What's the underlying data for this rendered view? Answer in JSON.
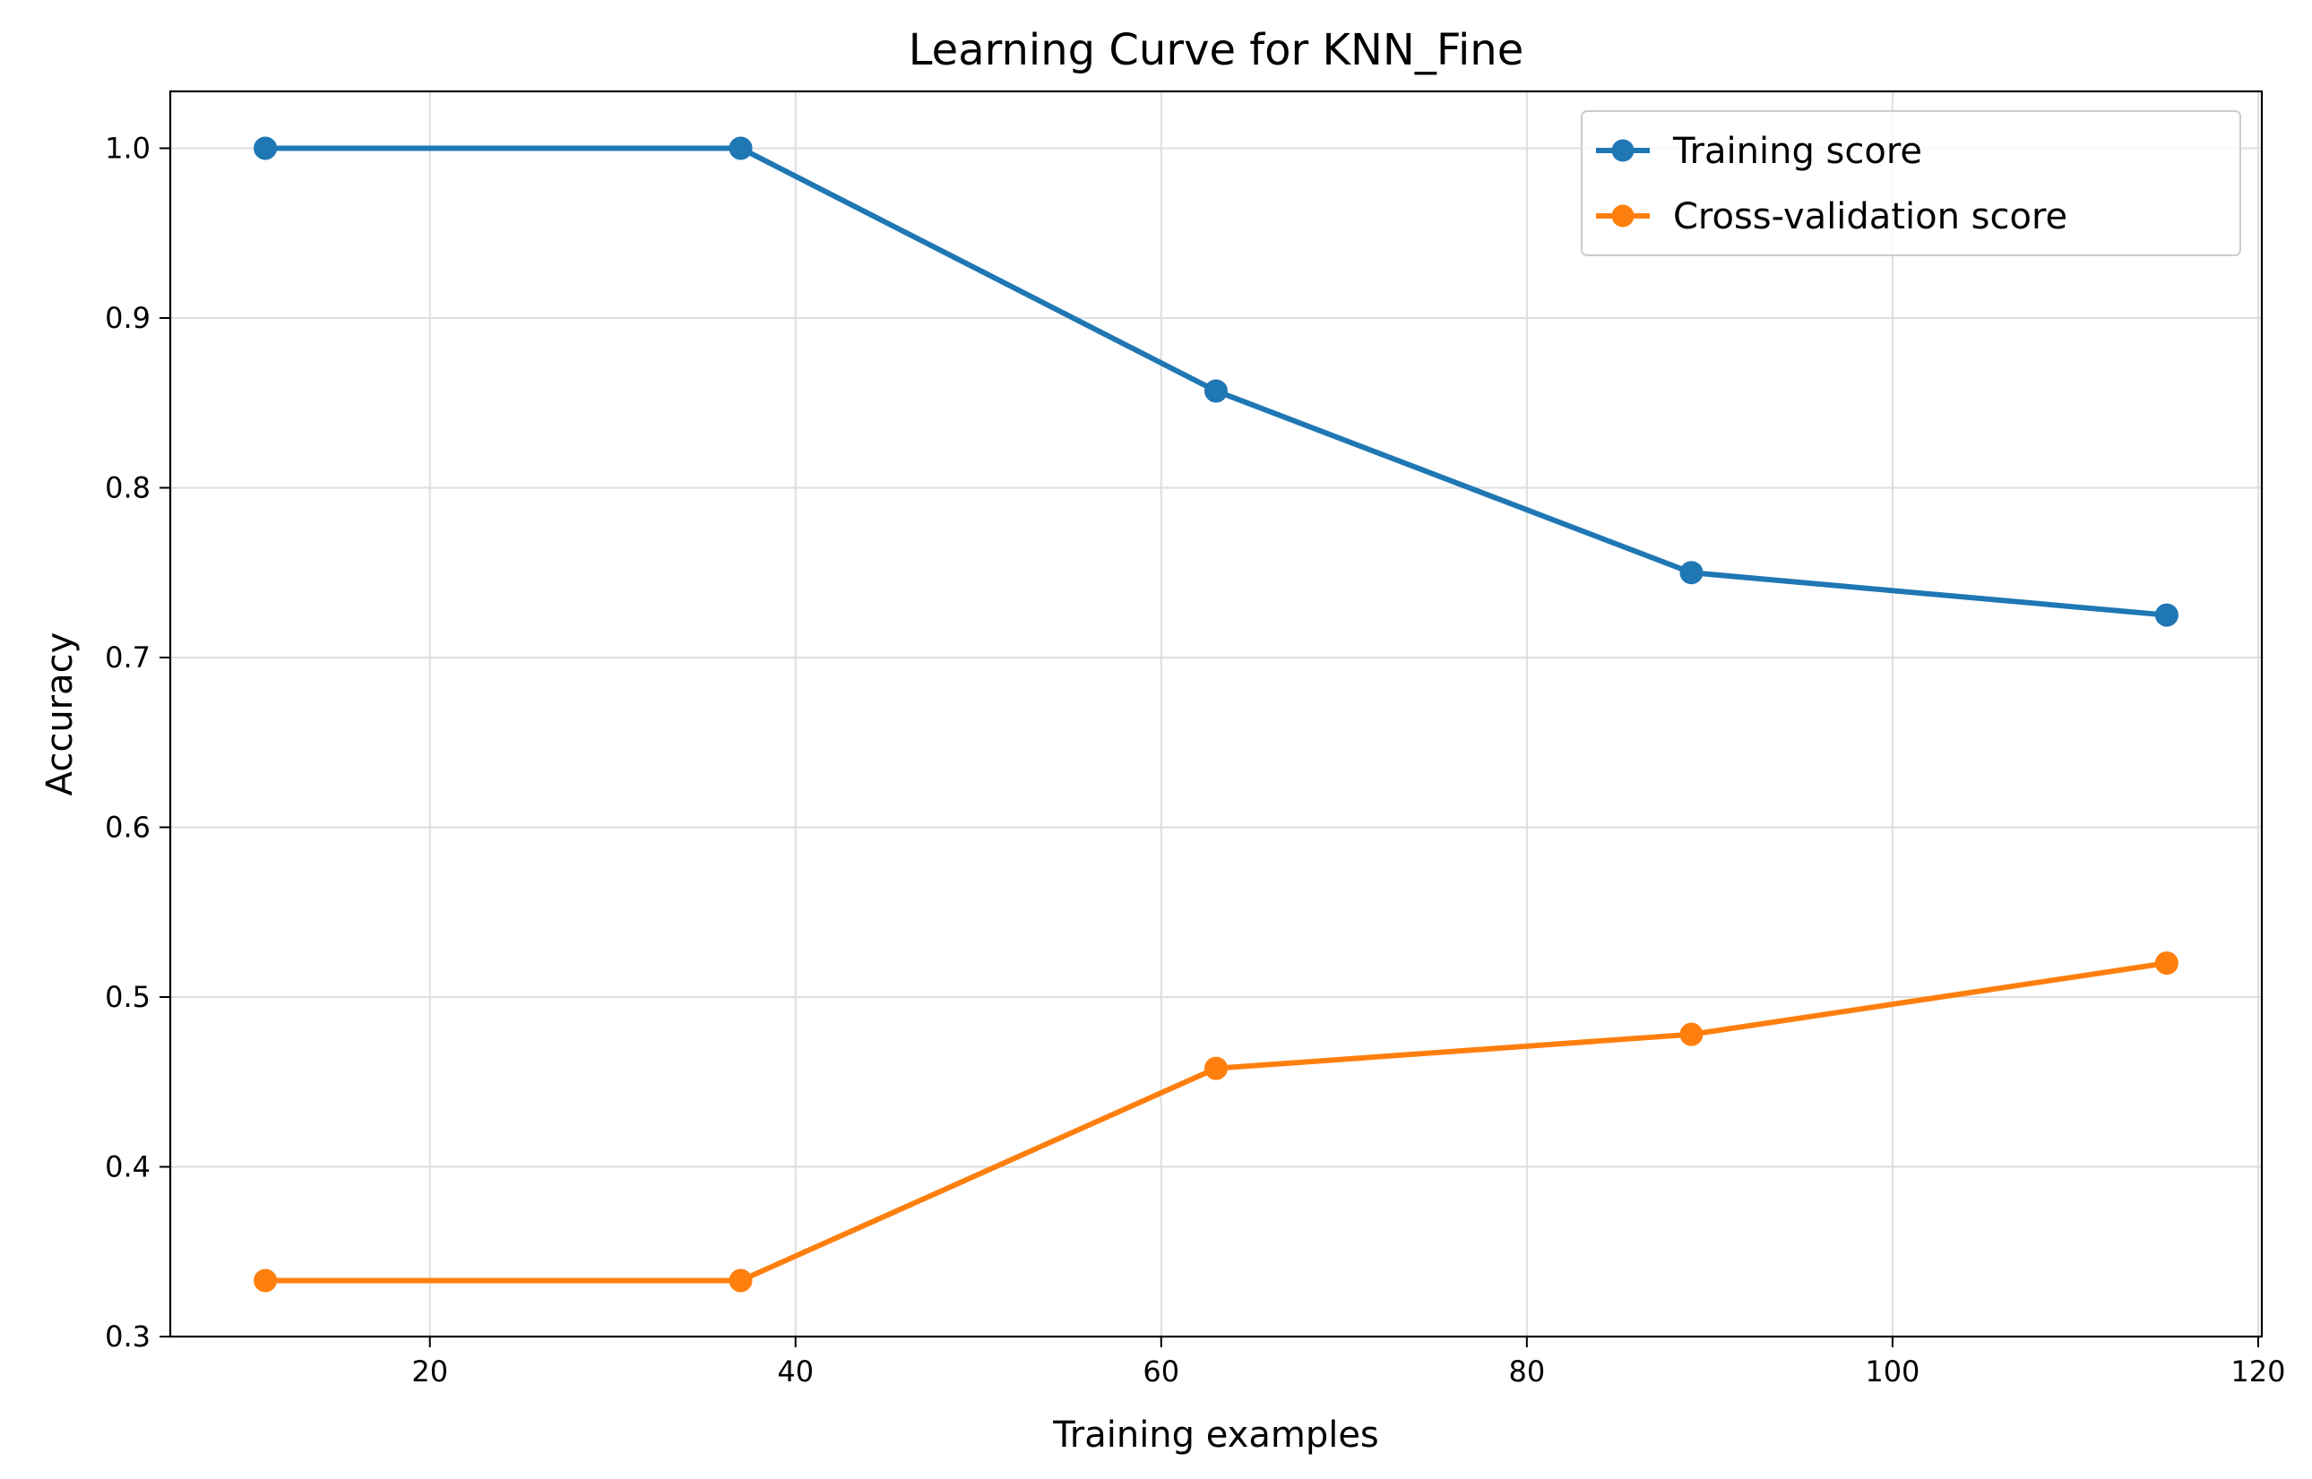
{
  "chart_data": {
    "type": "line",
    "title": "Learning Curve for KNN_Fine",
    "xlabel": "Training examples",
    "ylabel": "Accuracy",
    "x": [
      11,
      37,
      63,
      89,
      115
    ],
    "series": [
      {
        "name": "Training score",
        "color": "#1f77b4",
        "marker": "circle",
        "values": [
          1.0,
          1.0,
          0.857,
          0.75,
          0.725
        ]
      },
      {
        "name": "Cross-validation score",
        "color": "#ff7f0e",
        "marker": "circle",
        "values": [
          0.333,
          0.333,
          0.458,
          0.478,
          0.52
        ]
      }
    ],
    "xlim": [
      5.8,
      120.2
    ],
    "ylim": [
      0.3,
      1.0335
    ],
    "xticks": [
      20,
      40,
      60,
      80,
      100,
      120
    ],
    "xtick_labels": [
      "20",
      "40",
      "60",
      "80",
      "100",
      "120"
    ],
    "yticks": [
      0.3,
      0.4,
      0.5,
      0.6,
      0.7,
      0.8,
      0.9,
      1.0
    ],
    "ytick_labels": [
      "0.3",
      "0.4",
      "0.5",
      "0.6",
      "0.7",
      "0.8",
      "0.9",
      "1.0"
    ],
    "grid": true,
    "legend_position": "upper right"
  }
}
